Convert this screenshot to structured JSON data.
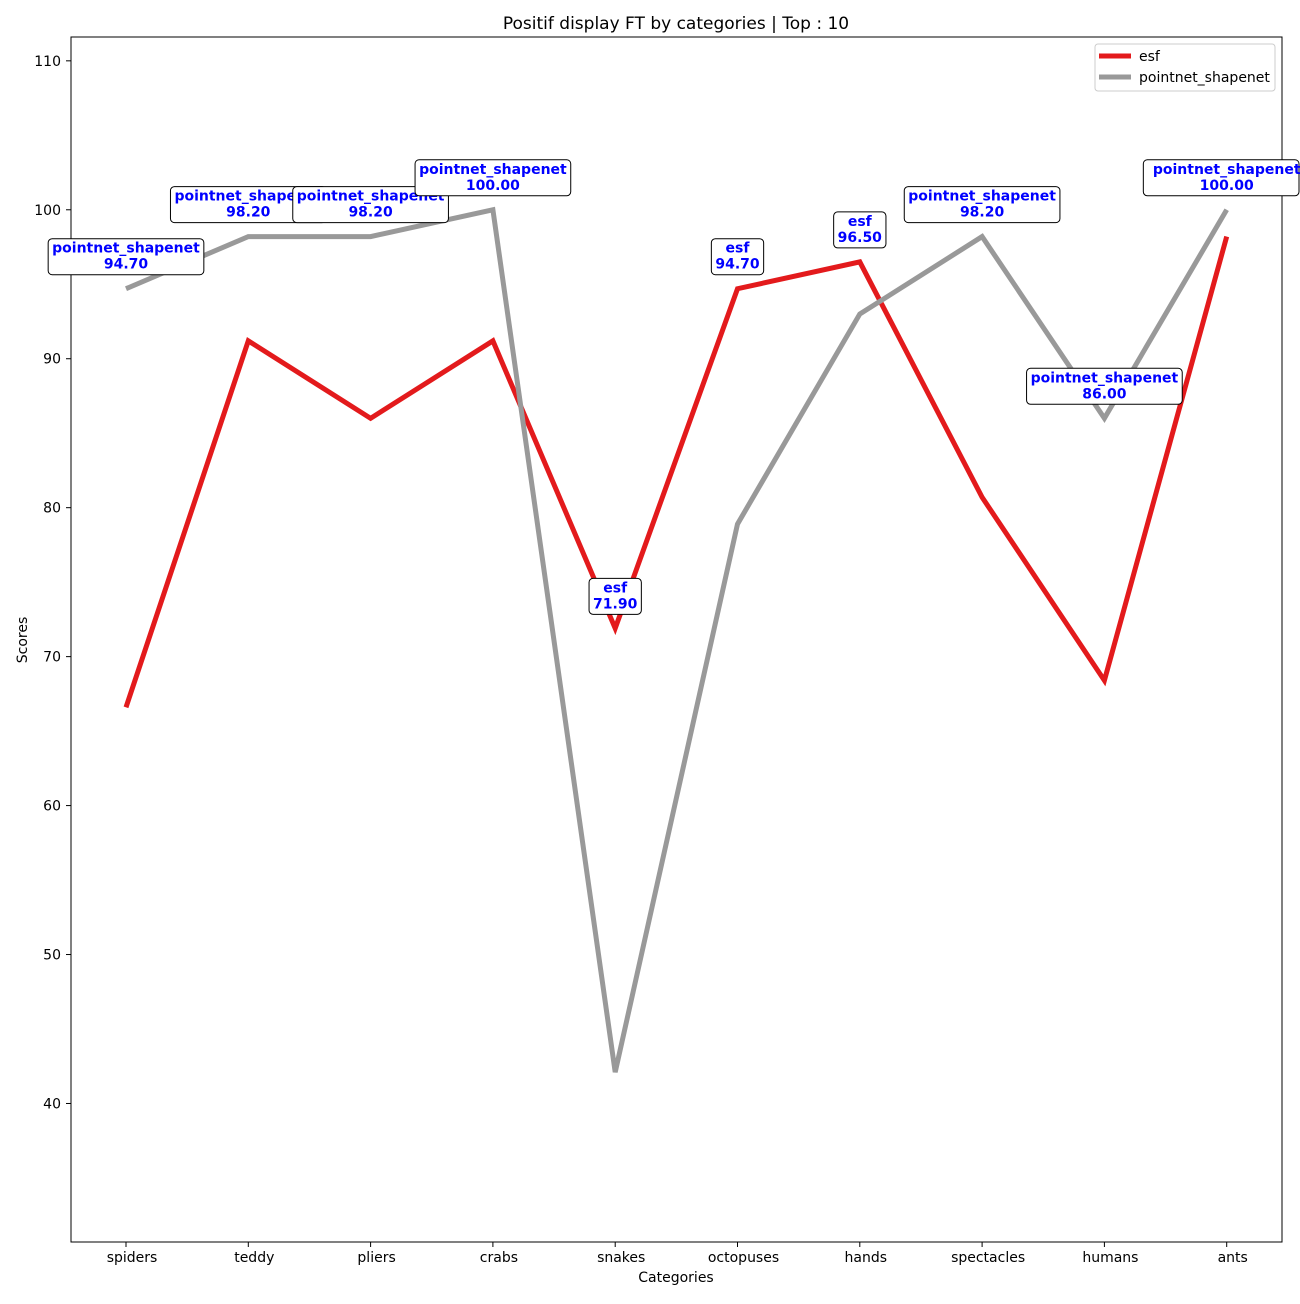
{
  "chart_data": {
    "type": "line",
    "title": "Positif display FT by categories | Top : 10",
    "xlabel": "Categories",
    "ylabel": "Scores",
    "categories": [
      "spiders",
      "teddy",
      "pliers",
      "crabs",
      "snakes",
      "octopuses",
      "hands",
      "spectacles",
      "humans",
      "ants"
    ],
    "ylim": [
      30.7,
      111.6
    ],
    "yticks": [
      40,
      50,
      60,
      70,
      80,
      90,
      100,
      110
    ],
    "grid": false,
    "legend_position": "top-right",
    "series": [
      {
        "name": "esf",
        "color": "#e31a1c",
        "values": [
          66.6,
          91.2,
          86.0,
          91.2,
          71.9,
          94.7,
          96.5,
          80.7,
          68.4,
          98.2
        ]
      },
      {
        "name": "pointnet_shapenet",
        "color": "#999999",
        "values": [
          94.7,
          98.2,
          98.2,
          100.0,
          42.1,
          78.9,
          93.0,
          98.2,
          86.0,
          100.0
        ]
      }
    ],
    "annotations": [
      {
        "category": "spiders",
        "series": "pointnet_shapenet",
        "value": 94.7,
        "label": "pointnet_shapenet",
        "value_text": "94.70"
      },
      {
        "category": "teddy",
        "series": "pointnet_shapenet",
        "value": 98.2,
        "label": "pointnet_shapenet",
        "value_text": "98.20"
      },
      {
        "category": "pliers",
        "series": "pointnet_shapenet",
        "value": 98.2,
        "label": "pointnet_shapenet",
        "value_text": "98.20"
      },
      {
        "category": "crabs",
        "series": "pointnet_shapenet",
        "value": 100.0,
        "label": "pointnet_shapenet",
        "value_text": "100.00"
      },
      {
        "category": "snakes",
        "series": "esf",
        "value": 71.9,
        "label": "esf",
        "value_text": "71.90"
      },
      {
        "category": "octopuses",
        "series": "esf",
        "value": 94.7,
        "label": "esf",
        "value_text": "94.70"
      },
      {
        "category": "hands",
        "series": "esf",
        "value": 96.5,
        "label": "esf",
        "value_text": "96.50"
      },
      {
        "category": "spectacles",
        "series": "pointnet_shapenet",
        "value": 98.2,
        "label": "pointnet_shapenet",
        "value_text": "98.20"
      },
      {
        "category": "humans",
        "series": "pointnet_shapenet",
        "value": 86.0,
        "label": "pointnet_shapenet",
        "value_text": "86.00"
      },
      {
        "category": "ants",
        "series": "pointnet_shapenet",
        "value": 100.0,
        "label": "pointnet_shapenet",
        "value_text": "100.00"
      }
    ]
  }
}
